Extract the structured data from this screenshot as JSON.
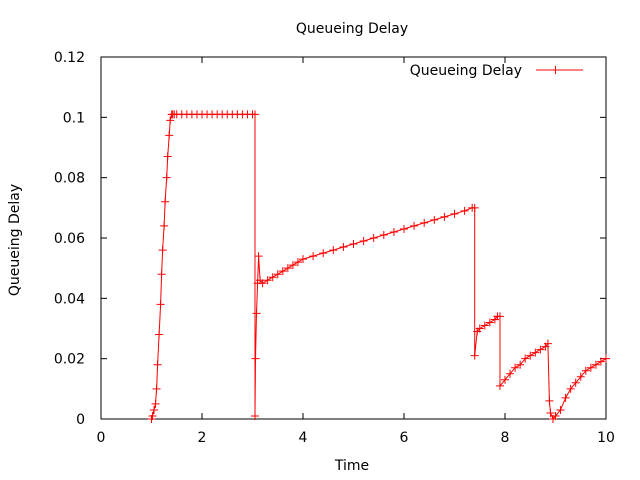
{
  "chart_data": {
    "type": "line",
    "title": "Queueing Delay",
    "xlabel": "Time",
    "ylabel": "Queueing Delay",
    "xlim": [
      0,
      10
    ],
    "ylim": [
      0,
      0.12
    ],
    "xticks": [
      "0",
      "2",
      "4",
      "6",
      "8",
      "10"
    ],
    "yticks": [
      "0",
      "0.02",
      "0.04",
      "0.06",
      "0.08",
      "0.1",
      "0.12"
    ],
    "grid": false,
    "legend_position": "top-right",
    "series": [
      {
        "name": "Queueing Delay",
        "color": "#ff0000",
        "marker": "plus",
        "x": [
          1.0,
          1.02,
          1.05,
          1.08,
          1.1,
          1.12,
          1.15,
          1.18,
          1.2,
          1.22,
          1.25,
          1.27,
          1.3,
          1.32,
          1.35,
          1.37,
          1.4,
          1.42,
          1.45,
          1.5,
          1.6,
          1.7,
          1.8,
          1.9,
          2.0,
          2.1,
          2.2,
          2.3,
          2.4,
          2.5,
          2.6,
          2.7,
          2.8,
          2.9,
          3.0,
          3.05,
          3.05,
          3.06,
          3.08,
          3.1,
          3.12,
          3.15,
          3.2,
          3.3,
          3.4,
          3.5,
          3.6,
          3.7,
          3.8,
          3.9,
          4.0,
          4.2,
          4.4,
          4.6,
          4.8,
          5.0,
          5.2,
          5.4,
          5.6,
          5.8,
          6.0,
          6.2,
          6.4,
          6.6,
          6.8,
          7.0,
          7.2,
          7.35,
          7.4,
          7.4,
          7.45,
          7.5,
          7.6,
          7.7,
          7.8,
          7.85,
          7.9,
          7.9,
          8.0,
          8.1,
          8.2,
          8.3,
          8.4,
          8.5,
          8.6,
          8.7,
          8.8,
          8.85,
          8.88,
          8.9,
          8.95,
          9.0,
          9.1,
          9.2,
          9.3,
          9.4,
          9.5,
          9.6,
          9.7,
          9.8,
          9.9,
          10.0
        ],
        "y": [
          0.0,
          0.001,
          0.003,
          0.005,
          0.01,
          0.018,
          0.028,
          0.038,
          0.048,
          0.056,
          0.064,
          0.072,
          0.08,
          0.087,
          0.094,
          0.099,
          0.101,
          0.101,
          0.101,
          0.101,
          0.101,
          0.101,
          0.101,
          0.101,
          0.101,
          0.101,
          0.101,
          0.101,
          0.101,
          0.101,
          0.101,
          0.101,
          0.101,
          0.101,
          0.101,
          0.101,
          0.001,
          0.02,
          0.035,
          0.045,
          0.054,
          0.046,
          0.045,
          0.046,
          0.047,
          0.048,
          0.049,
          0.05,
          0.051,
          0.052,
          0.053,
          0.054,
          0.055,
          0.056,
          0.057,
          0.058,
          0.059,
          0.06,
          0.061,
          0.062,
          0.063,
          0.064,
          0.065,
          0.066,
          0.067,
          0.068,
          0.069,
          0.07,
          0.07,
          0.021,
          0.029,
          0.03,
          0.031,
          0.032,
          0.033,
          0.034,
          0.034,
          0.011,
          0.013,
          0.015,
          0.017,
          0.018,
          0.02,
          0.021,
          0.022,
          0.023,
          0.024,
          0.025,
          0.006,
          0.002,
          0.0,
          0.001,
          0.003,
          0.007,
          0.01,
          0.012,
          0.014,
          0.016,
          0.017,
          0.018,
          0.019,
          0.02
        ]
      }
    ]
  }
}
